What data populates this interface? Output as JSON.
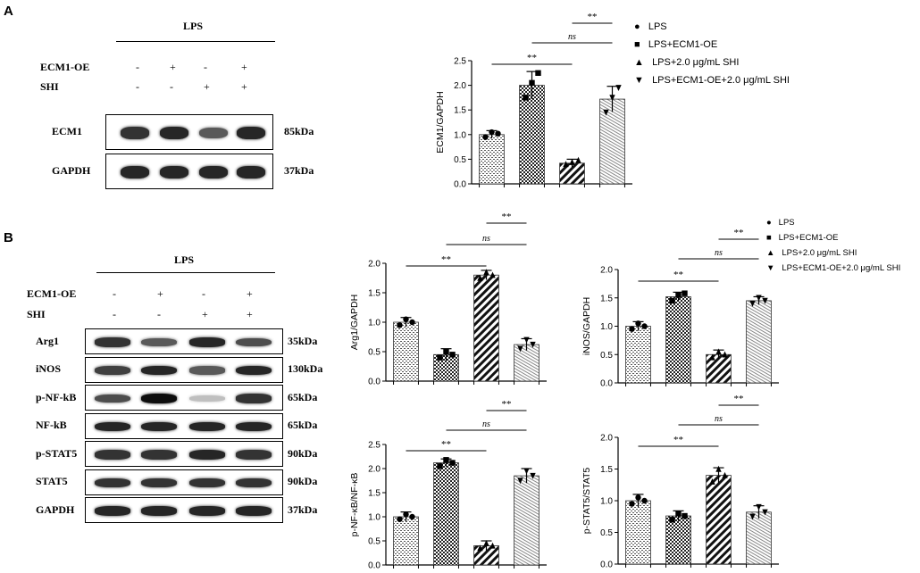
{
  "panels": {
    "A": {
      "letter": "A",
      "lps_label": "LPS",
      "conditions": [
        {
          "name": "ECM1-OE",
          "signs": [
            "-",
            "+",
            "-",
            "+"
          ]
        },
        {
          "name": "SHI",
          "signs": [
            "-",
            "-",
            "+",
            "+"
          ]
        }
      ],
      "blots": [
        {
          "name": "ECM1",
          "kda": "85kDa",
          "intensity": [
            0.8,
            0.85,
            0.65,
            0.85
          ]
        },
        {
          "name": "GAPDH",
          "kda": "37kDa",
          "intensity": [
            0.85,
            0.85,
            0.85,
            0.85
          ]
        }
      ]
    },
    "B": {
      "letter": "B",
      "lps_label": "LPS",
      "conditions": [
        {
          "name": "ECM1-OE",
          "signs": [
            "-",
            "+",
            "-",
            "+"
          ]
        },
        {
          "name": "SHI",
          "signs": [
            "-",
            "-",
            "+",
            "+"
          ]
        }
      ],
      "blots": [
        {
          "name": "Arg1",
          "kda": "35kDa",
          "intensity": [
            0.8,
            0.65,
            0.85,
            0.7
          ]
        },
        {
          "name": "iNOS",
          "kda": "130kDa",
          "intensity": [
            0.75,
            0.85,
            0.65,
            0.85
          ]
        },
        {
          "name": "p-NF-kB",
          "kda": "65kDa",
          "intensity": [
            0.7,
            0.95,
            0.25,
            0.8
          ]
        },
        {
          "name": "NF-kB",
          "kda": "65kDa",
          "intensity": [
            0.85,
            0.85,
            0.85,
            0.85
          ]
        },
        {
          "name": "p-STAT5",
          "kda": "90kDa",
          "intensity": [
            0.8,
            0.8,
            0.85,
            0.8
          ]
        },
        {
          "name": "STAT5",
          "kda": "90kDa",
          "intensity": [
            0.8,
            0.8,
            0.8,
            0.8
          ]
        },
        {
          "name": "GAPDH",
          "kda": "37kDa",
          "intensity": [
            0.85,
            0.85,
            0.85,
            0.85
          ]
        }
      ]
    }
  },
  "legend": {
    "entries": [
      {
        "marker": "circle",
        "label": "LPS"
      },
      {
        "marker": "square",
        "label": "LPS+ECM1-OE"
      },
      {
        "marker": "triangle-up",
        "label": "LPS+2.0 μg/mL SHI"
      },
      {
        "marker": "triangle-down",
        "label": "LPS+ECM1-OE+2.0 μg/mL SHI"
      }
    ]
  },
  "chart_data": [
    {
      "id": "ecm1",
      "type": "bar",
      "ylabel": "ECM1/GAPDH",
      "ylim": [
        0,
        2.5
      ],
      "yticks": [
        "0.0",
        "0.5",
        "1.0",
        "1.5",
        "2.0",
        "2.5"
      ],
      "yticks_values": [
        0,
        0.5,
        1.0,
        1.5,
        2.0,
        2.5
      ],
      "categories": [
        "LPS",
        "LPS+ECM1-OE",
        "LPS+2.0 μg/mL SHI",
        "LPS+ECM1-OE+2.0 μg/mL SHI"
      ],
      "values": [
        1.0,
        2.0,
        0.42,
        1.72
      ],
      "errors": [
        0.08,
        0.28,
        0.08,
        0.26
      ],
      "points": [
        [
          0.95,
          1.05,
          1.02
        ],
        [
          1.75,
          2.05,
          2.25
        ],
        [
          0.4,
          0.44,
          0.48
        ],
        [
          1.45,
          1.75,
          1.95
        ]
      ],
      "significance": [
        {
          "from": 0,
          "to": 2,
          "label": "**"
        },
        {
          "from": 1,
          "to": 3,
          "label": "ns"
        },
        {
          "from": 2,
          "to": 3,
          "label": "**"
        }
      ]
    },
    {
      "id": "arg1",
      "type": "bar",
      "ylabel": "Arg1/GAPDH",
      "ylim": [
        0,
        2.0
      ],
      "yticks": [
        "0.0",
        "0.5",
        "1.0",
        "1.5",
        "2.0"
      ],
      "yticks_values": [
        0,
        0.5,
        1.0,
        1.5,
        2.0
      ],
      "categories": [
        "LPS",
        "LPS+ECM1-OE",
        "LPS+2.0 μg/mL SHI",
        "LPS+ECM1-OE+2.0 μg/mL SHI"
      ],
      "values": [
        1.0,
        0.45,
        1.8,
        0.62
      ],
      "errors": [
        0.08,
        0.1,
        0.08,
        0.1
      ],
      "points": [
        [
          0.95,
          1.05,
          1.0
        ],
        [
          0.4,
          0.5,
          0.45
        ],
        [
          1.75,
          1.85,
          1.8
        ],
        [
          0.55,
          0.7,
          0.62
        ]
      ],
      "significance": [
        {
          "from": 0,
          "to": 2,
          "label": "**"
        },
        {
          "from": 1,
          "to": 3,
          "label": "ns"
        },
        {
          "from": 2,
          "to": 3,
          "label": "**"
        }
      ]
    },
    {
      "id": "inos",
      "type": "bar",
      "ylabel": "iNOS/GAPDH",
      "ylim": [
        0,
        2.0
      ],
      "yticks": [
        "0.0",
        "0.5",
        "1.0",
        "1.5",
        "2.0"
      ],
      "yticks_values": [
        0,
        0.5,
        1.0,
        1.5,
        2.0
      ],
      "categories": [
        "LPS",
        "LPS+ECM1-OE",
        "LPS+2.0 μg/mL SHI",
        "LPS+ECM1-OE+2.0 μg/mL SHI"
      ],
      "values": [
        1.0,
        1.52,
        0.5,
        1.45
      ],
      "errors": [
        0.08,
        0.08,
        0.08,
        0.07
      ],
      "points": [
        [
          0.95,
          1.05,
          1.0
        ],
        [
          1.45,
          1.55,
          1.58
        ],
        [
          0.45,
          0.55,
          0.5
        ],
        [
          1.4,
          1.5,
          1.45
        ]
      ],
      "significance": [
        {
          "from": 0,
          "to": 2,
          "label": "**"
        },
        {
          "from": 1,
          "to": 3,
          "label": "ns"
        },
        {
          "from": 2,
          "to": 3,
          "label": "**"
        }
      ]
    },
    {
      "id": "pnfkb",
      "type": "bar",
      "ylabel": "p-NF-κB/NF-κB",
      "ylim": [
        0,
        2.5
      ],
      "yticks": [
        "0.0",
        "0.5",
        "1.0",
        "1.5",
        "2.0",
        "2.5"
      ],
      "yticks_values": [
        0,
        0.5,
        1.0,
        1.5,
        2.0,
        2.5
      ],
      "categories": [
        "LPS",
        "LPS+ECM1-OE",
        "LPS+2.0 μg/mL SHI",
        "LPS+ECM1-OE+2.0 μg/mL SHI"
      ],
      "values": [
        1.0,
        2.12,
        0.4,
        1.85
      ],
      "errors": [
        0.1,
        0.08,
        0.1,
        0.15
      ],
      "points": [
        [
          0.95,
          1.05,
          1.0
        ],
        [
          2.05,
          2.18,
          2.12
        ],
        [
          0.35,
          0.45,
          0.4
        ],
        [
          1.75,
          1.95,
          1.85
        ]
      ],
      "significance": [
        {
          "from": 0,
          "to": 2,
          "label": "**"
        },
        {
          "from": 1,
          "to": 3,
          "label": "ns"
        },
        {
          "from": 2,
          "to": 3,
          "label": "**"
        }
      ]
    },
    {
      "id": "pstat5",
      "type": "bar",
      "ylabel": "p-STAT5/STAT5",
      "ylim": [
        0,
        2.0
      ],
      "yticks": [
        "0.0",
        "0.5",
        "1.0",
        "1.5",
        "2.0"
      ],
      "yticks_values": [
        0,
        0.5,
        1.0,
        1.5,
        2.0
      ],
      "categories": [
        "LPS",
        "LPS+ECM1-OE",
        "LPS+2.0 μg/mL SHI",
        "LPS+ECM1-OE+2.0 μg/mL SHI"
      ],
      "values": [
        1.0,
        0.76,
        1.4,
        0.82
      ],
      "errors": [
        0.1,
        0.08,
        0.12,
        0.1
      ],
      "points": [
        [
          0.95,
          1.05,
          1.0
        ],
        [
          0.7,
          0.8,
          0.76
        ],
        [
          1.3,
          1.5,
          1.4
        ],
        [
          0.75,
          0.9,
          0.82
        ]
      ],
      "significance": [
        {
          "from": 0,
          "to": 2,
          "label": "**"
        },
        {
          "from": 1,
          "to": 3,
          "label": "ns"
        },
        {
          "from": 2,
          "to": 3,
          "label": "**"
        }
      ]
    }
  ]
}
